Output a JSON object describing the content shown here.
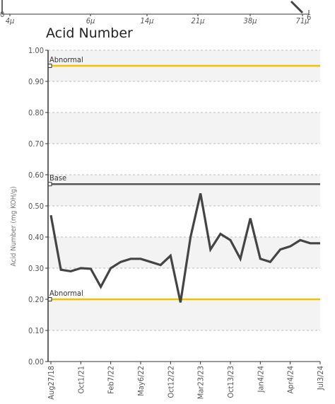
{
  "particle_axis": {
    "tick_labels": [
      "4μ",
      "6μ",
      "14μ",
      "21μ",
      "38μ",
      "71μ"
    ],
    "y_bottom_label": "0",
    "y_bottom_right_label": "6"
  },
  "chart_data": {
    "type": "line",
    "title": "Acid Number",
    "ylabel": "Acid Number (mg KOH/g)",
    "ylim": [
      0.0,
      1.0
    ],
    "yticks": [
      "0.00",
      "0.10",
      "0.20",
      "0.30",
      "0.40",
      "0.50",
      "0.60",
      "0.70",
      "0.80",
      "0.90",
      "1.00"
    ],
    "xtick_labels": [
      "Aug27/18",
      "Oct1/21",
      "Feb7/22",
      "May6/22",
      "Oct12/22",
      "Mar23/23",
      "Oct13/23",
      "Jan4/24",
      "Apr4/24",
      "Jul3/24"
    ],
    "grid": "horizontal-dashed",
    "reference_lines": [
      {
        "label": "Abnormal",
        "value": 0.95,
        "color": "#f2c200"
      },
      {
        "label": "Base",
        "value": 0.57,
        "color": "#555555"
      },
      {
        "label": "Abnormal",
        "value": 0.2,
        "color": "#f2c200"
      }
    ],
    "series": [
      {
        "color": "#444444",
        "values": [
          0.47,
          0.295,
          0.29,
          0.3,
          0.298,
          0.24,
          0.3,
          0.32,
          0.33,
          0.33,
          0.32,
          0.31,
          0.34,
          0.19,
          0.4,
          0.54,
          0.36,
          0.41,
          0.39,
          0.33,
          0.46,
          0.33,
          0.32,
          0.36,
          0.37,
          0.39,
          0.38,
          0.38
        ]
      }
    ]
  }
}
